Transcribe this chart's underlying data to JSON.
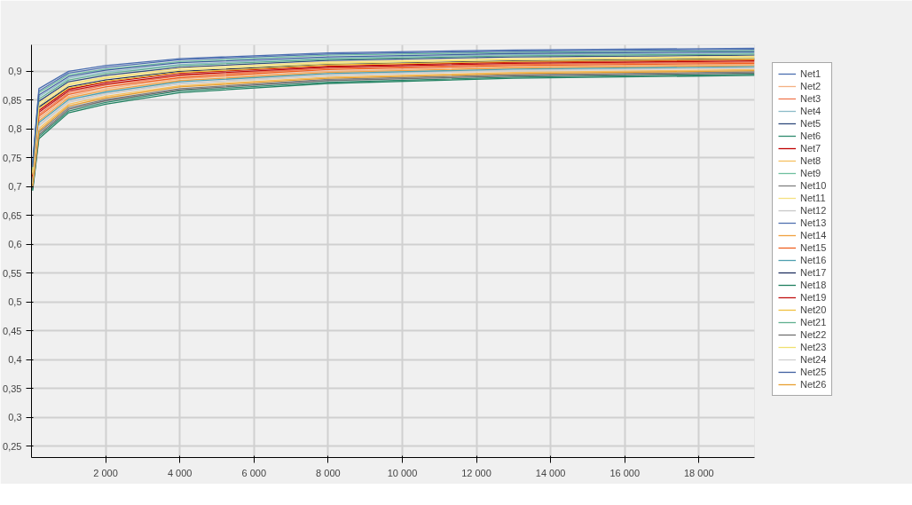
{
  "chart_data": {
    "type": "line",
    "x": [
      30,
      200,
      1000,
      2000,
      4000,
      8000,
      13000,
      19500
    ],
    "xlim": [
      0,
      19500
    ],
    "ylim": [
      0.23,
      0.946
    ],
    "xticks": [
      {
        "value": 2000,
        "label": "2 000"
      },
      {
        "value": 4000,
        "label": "4 000"
      },
      {
        "value": 6000,
        "label": "6 000"
      },
      {
        "value": 8000,
        "label": "8 000"
      },
      {
        "value": 10000,
        "label": "10 000"
      },
      {
        "value": 12000,
        "label": "12 000"
      },
      {
        "value": 14000,
        "label": "14 000"
      },
      {
        "value": 16000,
        "label": "16 000"
      },
      {
        "value": 18000,
        "label": "18 000"
      }
    ],
    "yticks": [
      {
        "value": 0.25,
        "label": "0,25"
      },
      {
        "value": 0.3,
        "label": "0,3"
      },
      {
        "value": 0.35,
        "label": "0,35"
      },
      {
        "value": 0.4,
        "label": "0,4"
      },
      {
        "value": 0.45,
        "label": "0,45"
      },
      {
        "value": 0.5,
        "label": "0,5"
      },
      {
        "value": 0.55,
        "label": "0,55"
      },
      {
        "value": 0.6,
        "label": "0,6"
      },
      {
        "value": 0.65,
        "label": "0,65"
      },
      {
        "value": 0.7,
        "label": "0,7"
      },
      {
        "value": 0.75,
        "label": "0,75"
      },
      {
        "value": 0.8,
        "label": "0,8"
      },
      {
        "value": 0.85,
        "label": "0,85"
      },
      {
        "value": 0.9,
        "label": "0,9"
      }
    ],
    "grid": true,
    "legend": "right",
    "line_style": "solid",
    "series": [
      {
        "name": "Net1",
        "color": "#4a6eb0",
        "values": [
          0.74,
          0.87,
          0.9,
          0.91,
          0.922,
          0.932,
          0.937,
          0.94
        ]
      },
      {
        "name": "Net2",
        "color": "#f4b183",
        "values": [
          0.712,
          0.818,
          0.857,
          0.87,
          0.887,
          0.9,
          0.908,
          0.912
        ]
      },
      {
        "name": "Net3",
        "color": "#f07850",
        "values": [
          0.716,
          0.825,
          0.863,
          0.876,
          0.892,
          0.905,
          0.912,
          0.916
        ]
      },
      {
        "name": "Net4",
        "color": "#8cbcc8",
        "values": [
          0.732,
          0.856,
          0.888,
          0.899,
          0.912,
          0.923,
          0.929,
          0.932
        ]
      },
      {
        "name": "Net5",
        "color": "#2f4b7c",
        "values": [
          0.728,
          0.848,
          0.882,
          0.893,
          0.907,
          0.919,
          0.925,
          0.928
        ]
      },
      {
        "name": "Net6",
        "color": "#2e8b6e",
        "values": [
          0.695,
          0.787,
          0.831,
          0.846,
          0.866,
          0.881,
          0.89,
          0.895
        ]
      },
      {
        "name": "Net7",
        "color": "#c00000",
        "values": [
          0.72,
          0.832,
          0.869,
          0.881,
          0.897,
          0.909,
          0.916,
          0.92
        ]
      },
      {
        "name": "Net8",
        "color": "#f5c060",
        "values": [
          0.703,
          0.801,
          0.843,
          0.857,
          0.875,
          0.89,
          0.898,
          0.903
        ]
      },
      {
        "name": "Net9",
        "color": "#70c0a0",
        "values": [
          0.736,
          0.863,
          0.894,
          0.904,
          0.917,
          0.928,
          0.933,
          0.936
        ]
      },
      {
        "name": "Net10",
        "color": "#808080",
        "values": [
          0.699,
          0.794,
          0.837,
          0.851,
          0.87,
          0.886,
          0.894,
          0.899
        ]
      },
      {
        "name": "Net11",
        "color": "#f5e080",
        "values": [
          0.726,
          0.845,
          0.879,
          0.89,
          0.905,
          0.916,
          0.922,
          0.926
        ]
      },
      {
        "name": "Net12",
        "color": "#c8c8c8",
        "values": [
          0.706,
          0.807,
          0.848,
          0.862,
          0.879,
          0.894,
          0.902,
          0.906
        ]
      },
      {
        "name": "Net13",
        "color": "#5070b0",
        "values": [
          0.738,
          0.866,
          0.897,
          0.907,
          0.92,
          0.93,
          0.935,
          0.938
        ]
      },
      {
        "name": "Net14",
        "color": "#f0a040",
        "values": [
          0.71,
          0.814,
          0.854,
          0.867,
          0.884,
          0.898,
          0.906,
          0.91
        ]
      },
      {
        "name": "Net15",
        "color": "#f06020",
        "values": [
          0.714,
          0.822,
          0.86,
          0.873,
          0.889,
          0.903,
          0.91,
          0.914
        ]
      },
      {
        "name": "Net16",
        "color": "#50a0b0",
        "values": [
          0.708,
          0.811,
          0.851,
          0.864,
          0.882,
          0.896,
          0.904,
          0.908
        ]
      },
      {
        "name": "Net17",
        "color": "#203060",
        "values": [
          0.722,
          0.838,
          0.873,
          0.885,
          0.9,
          0.912,
          0.918,
          0.922
        ]
      },
      {
        "name": "Net18",
        "color": "#208060",
        "values": [
          0.693,
          0.783,
          0.828,
          0.843,
          0.863,
          0.879,
          0.888,
          0.893
        ]
      },
      {
        "name": "Net19",
        "color": "#c01010",
        "values": [
          0.718,
          0.829,
          0.866,
          0.878,
          0.894,
          0.907,
          0.914,
          0.918
        ]
      },
      {
        "name": "Net20",
        "color": "#f0c040",
        "values": [
          0.721,
          0.835,
          0.871,
          0.883,
          0.898,
          0.911,
          0.917,
          0.921
        ]
      },
      {
        "name": "Net21",
        "color": "#60b090",
        "values": [
          0.73,
          0.852,
          0.885,
          0.896,
          0.91,
          0.921,
          0.927,
          0.93
        ]
      },
      {
        "name": "Net22",
        "color": "#707070",
        "values": [
          0.697,
          0.79,
          0.834,
          0.849,
          0.868,
          0.884,
          0.892,
          0.897
        ]
      },
      {
        "name": "Net23",
        "color": "#f0e070",
        "values": [
          0.724,
          0.841,
          0.876,
          0.888,
          0.902,
          0.914,
          0.92,
          0.924
        ]
      },
      {
        "name": "Net24",
        "color": "#d0d0d0",
        "values": [
          0.705,
          0.805,
          0.846,
          0.86,
          0.878,
          0.892,
          0.901,
          0.905
        ]
      },
      {
        "name": "Net25",
        "color": "#4060a0",
        "values": [
          0.734,
          0.859,
          0.891,
          0.902,
          0.915,
          0.925,
          0.931,
          0.934
        ]
      },
      {
        "name": "Net26",
        "color": "#e8a030",
        "values": [
          0.701,
          0.797,
          0.84,
          0.854,
          0.873,
          0.888,
          0.896,
          0.901
        ]
      }
    ]
  }
}
